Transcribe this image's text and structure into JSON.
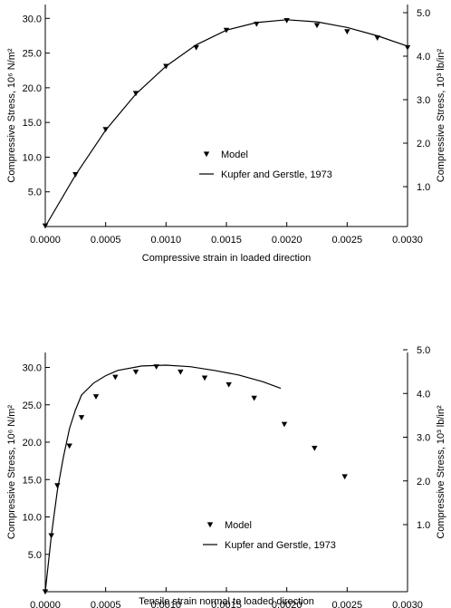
{
  "chart_data": [
    {
      "type": "line",
      "xlabel": "Compressive strain in loaded direction",
      "ylabel_left": "Compressive Stress, 10⁶ N/m²",
      "ylabel_right": "Compressive Stress, 10³ lb/in²",
      "xlim": [
        0,
        0.003
      ],
      "ylim": [
        0,
        32
      ],
      "x_ticks": [
        "0.0000",
        "0.0005",
        "0.0010",
        "0.0015",
        "0.0020",
        "0.0025",
        "0.0030"
      ],
      "y_ticks_left": [
        "5.0",
        "10.0",
        "15.0",
        "20.0",
        "25.0",
        "30.0"
      ],
      "y_ticks_right": [
        "1.0",
        "2.0",
        "3.0",
        "4.0",
        "5.0"
      ],
      "legend_position": "center-right",
      "series": [
        {
          "name": "Model",
          "style": "marker-triangle-down",
          "x": [
            0.0,
            0.00025,
            0.0005,
            0.00075,
            0.001,
            0.00125,
            0.0015,
            0.00175,
            0.002,
            0.00225,
            0.0025,
            0.00275,
            0.003
          ],
          "y": [
            0.1,
            7.5,
            14.0,
            19.2,
            23.1,
            25.8,
            28.3,
            29.2,
            29.7,
            29.0,
            28.1,
            27.2,
            25.8
          ]
        },
        {
          "name": "Kupfer and Gerstle, 1973",
          "style": "line",
          "x": [
            0.0,
            0.00025,
            0.0005,
            0.00075,
            0.001,
            0.00125,
            0.0015,
            0.00175,
            0.002,
            0.00225,
            0.0025,
            0.00275,
            0.003
          ],
          "y": [
            0.0,
            7.4,
            13.9,
            19.1,
            23.1,
            26.2,
            28.3,
            29.4,
            29.8,
            29.5,
            28.7,
            27.5,
            26.0
          ]
        }
      ]
    },
    {
      "type": "line",
      "xlabel": "Tensile strain normal to loaded direction",
      "ylabel_left": "Compressive Stress, 10⁶ N/m²",
      "ylabel_right": "Compressive Stress, 10³ lb/in²",
      "xlim": [
        0,
        0.003
      ],
      "ylim": [
        0,
        32
      ],
      "x_ticks": [
        "0.0000",
        "0.0005",
        "0.0010",
        "0.0015",
        "0.0020",
        "0.0025",
        "0.0030"
      ],
      "y_ticks_left": [
        "5.0",
        "10.0",
        "15.0",
        "20.0",
        "25.0",
        "30.0"
      ],
      "y_ticks_right": [
        "1.0",
        "2.0",
        "3.0",
        "4.0",
        "5.0"
      ],
      "legend_position": "center-right",
      "series": [
        {
          "name": "Model",
          "style": "marker-triangle-down",
          "x": [
            0.0,
            5e-05,
            0.0001,
            0.0002,
            0.0003,
            0.00042,
            0.00058,
            0.00075,
            0.00092,
            0.00112,
            0.00132,
            0.00152,
            0.00173,
            0.00198,
            0.00223,
            0.00248
          ],
          "y": [
            0.0,
            7.5,
            14.2,
            19.5,
            23.3,
            26.1,
            28.7,
            29.4,
            30.1,
            29.4,
            28.6,
            27.7,
            25.9,
            22.4,
            19.2,
            15.4
          ]
        },
        {
          "name": "Kupfer and Gerstle, 1973",
          "style": "line",
          "x": [
            0.0,
            5e-05,
            0.0001,
            0.00015,
            0.0002,
            0.00025,
            0.0003,
            0.0004,
            0.0005,
            0.0006,
            0.0008,
            0.001,
            0.0012,
            0.0014,
            0.0016,
            0.0018,
            0.00195
          ],
          "y": [
            0.0,
            7.5,
            13.5,
            18.0,
            21.8,
            24.3,
            26.3,
            27.9,
            28.9,
            29.6,
            30.2,
            30.3,
            30.1,
            29.6,
            29.0,
            28.1,
            27.2
          ]
        }
      ]
    }
  ]
}
